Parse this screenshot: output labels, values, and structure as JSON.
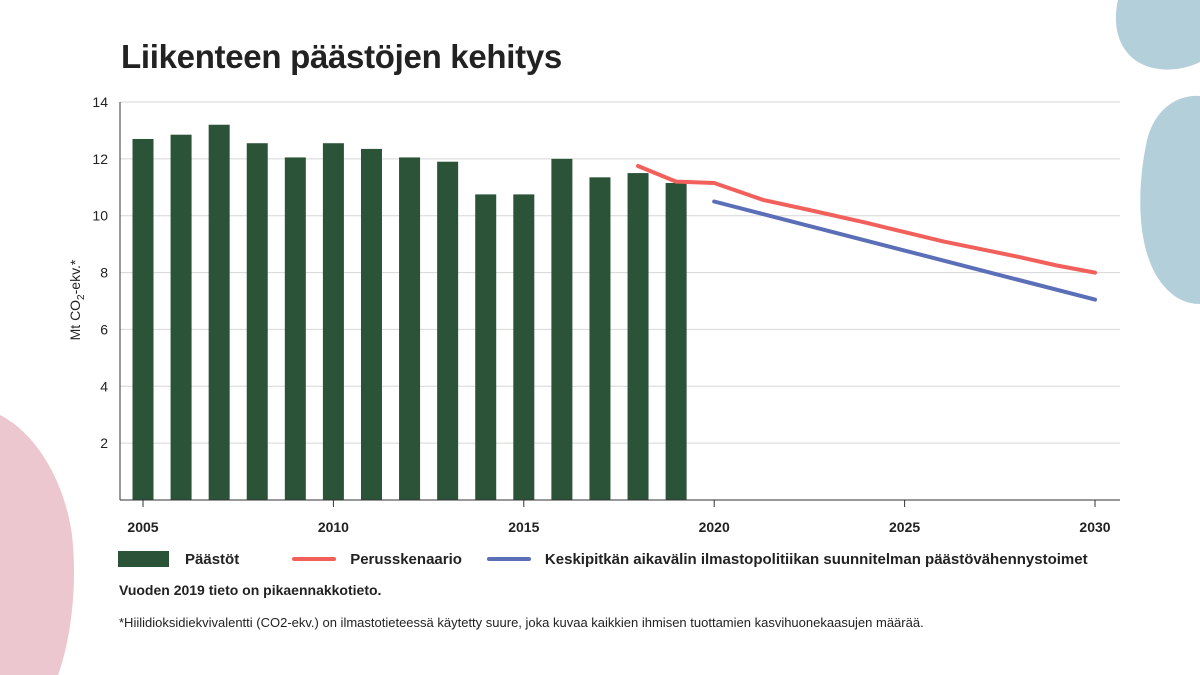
{
  "chart_data": {
    "type": "bar",
    "title": "Liikenteen päästöjen kehitys",
    "ylabel": "Mt CO2-ekv.*",
    "ylabel_parts": {
      "pre": "Mt CO",
      "sub": "2",
      "post": "-ekv.*"
    },
    "ylim": [
      0,
      14
    ],
    "xlim": [
      2005,
      2030
    ],
    "yticks": [
      2,
      4,
      6,
      8,
      10,
      12,
      14
    ],
    "xticks": [
      2005,
      2010,
      2015,
      2020,
      2025,
      2030
    ],
    "grid": true,
    "legend_position": "bottom",
    "series": [
      {
        "name": "Päästöt",
        "type": "bar",
        "color": "#2a5337",
        "x": [
          2005,
          2006,
          2007,
          2008,
          2009,
          2010,
          2011,
          2012,
          2013,
          2014,
          2015,
          2016,
          2017,
          2018,
          2019
        ],
        "values": [
          12.7,
          12.85,
          13.2,
          12.55,
          12.05,
          12.55,
          12.35,
          12.05,
          11.9,
          10.75,
          10.75,
          12.0,
          11.35,
          11.5,
          11.15
        ]
      },
      {
        "name": "Perusskenaario",
        "type": "line",
        "color": "#f2605c",
        "x": [
          2018,
          2019,
          2020,
          2021.3,
          2022.5,
          2024,
          2026,
          2028,
          2029,
          2030
        ],
        "values": [
          11.75,
          11.2,
          11.15,
          10.55,
          10.2,
          9.75,
          9.1,
          8.55,
          8.25,
          8.0
        ]
      },
      {
        "name": "Keskipitkän aikavälin ilmastopolitiikan suunnitelman päästövähennystoimet",
        "type": "line",
        "color": "#5b6fb8",
        "x": [
          2020,
          2030
        ],
        "values": [
          10.5,
          7.05
        ]
      }
    ]
  },
  "notes": {
    "preliminary": "Vuoden 2019 tieto on pikaennakkotieto.",
    "footnote": "*Hiilidioksidiekvivalentti (CO2-ekv.) on ilmastotieteessä käytetty suure, joka kuvaa kaikkien ihmisen tuottamien kasvihuonekaasujen määrää."
  },
  "colors": {
    "decor_blue": "#b3cfda",
    "decor_pink": "#ecc7cf",
    "grid": "#d6d6d6",
    "axis": "#333333",
    "text": "#222222"
  }
}
